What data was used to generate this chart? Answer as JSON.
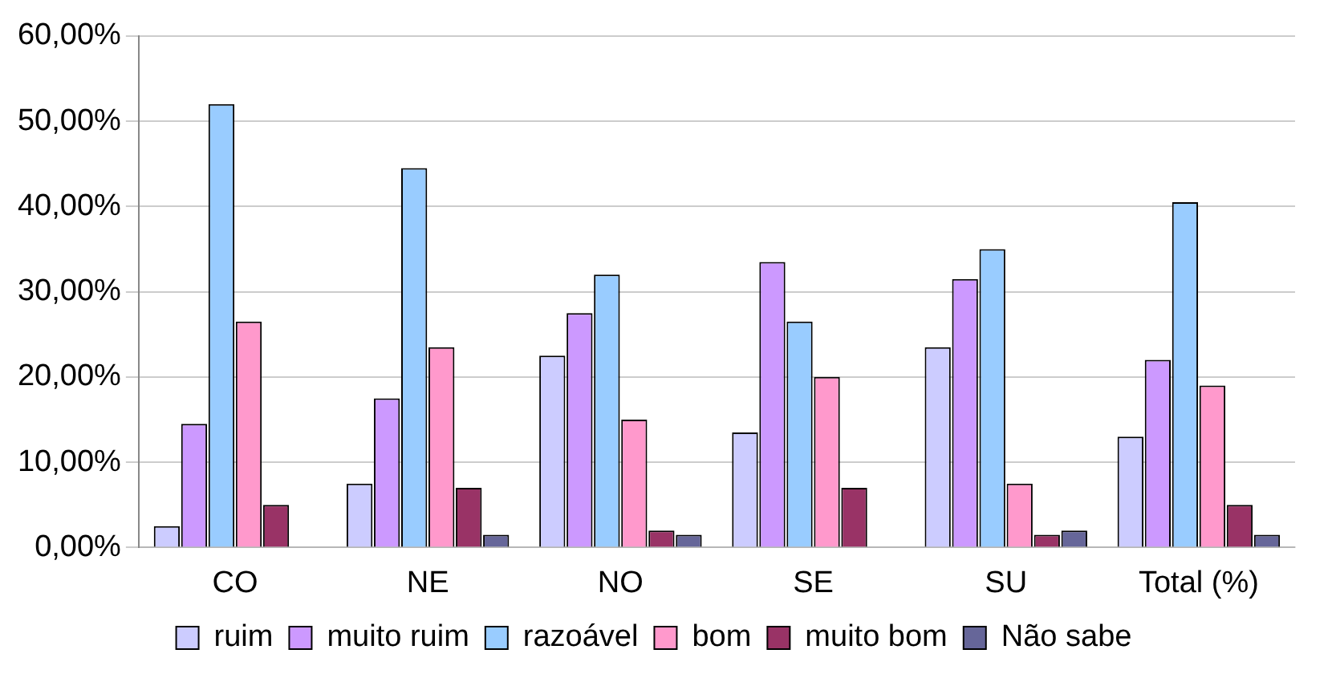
{
  "chart_data": {
    "type": "bar",
    "categories": [
      "CO",
      "NE",
      "NO",
      "SE",
      "SU",
      "Total (%)"
    ],
    "series": [
      {
        "name": "ruim",
        "color": "#ccccff",
        "values": [
          2.5,
          7.5,
          22.5,
          13.5,
          23.5,
          13
        ]
      },
      {
        "name": "muito ruim",
        "color": "#cc99ff",
        "values": [
          14.5,
          17.5,
          27.5,
          33.5,
          31.5,
          22
        ]
      },
      {
        "name": "razoável",
        "color": "#99ccff",
        "values": [
          52,
          44.5,
          32,
          26.5,
          35,
          40.5
        ]
      },
      {
        "name": "bom",
        "color": "#ff99cc",
        "values": [
          26.5,
          23.5,
          15,
          20,
          7.5,
          19
        ]
      },
      {
        "name": "muito bom",
        "color": "#993366",
        "values": [
          5,
          7,
          2,
          7,
          1.5,
          5
        ]
      },
      {
        "name": "Não sabe",
        "color": "#666699",
        "values": [
          0,
          1.5,
          1.5,
          0,
          2,
          1.5
        ]
      }
    ],
    "ylim": [
      0,
      60
    ],
    "yticks": [
      {
        "value": 0,
        "label": "0,00%"
      },
      {
        "value": 10,
        "label": "10,00%"
      },
      {
        "value": 20,
        "label": "20,00%"
      },
      {
        "value": 30,
        "label": "30,00%"
      },
      {
        "value": 40,
        "label": "40,00%"
      },
      {
        "value": 50,
        "label": "50,00%"
      },
      {
        "value": 60,
        "label": "60,00%"
      }
    ],
    "grid": "y",
    "legend": "bottom"
  }
}
